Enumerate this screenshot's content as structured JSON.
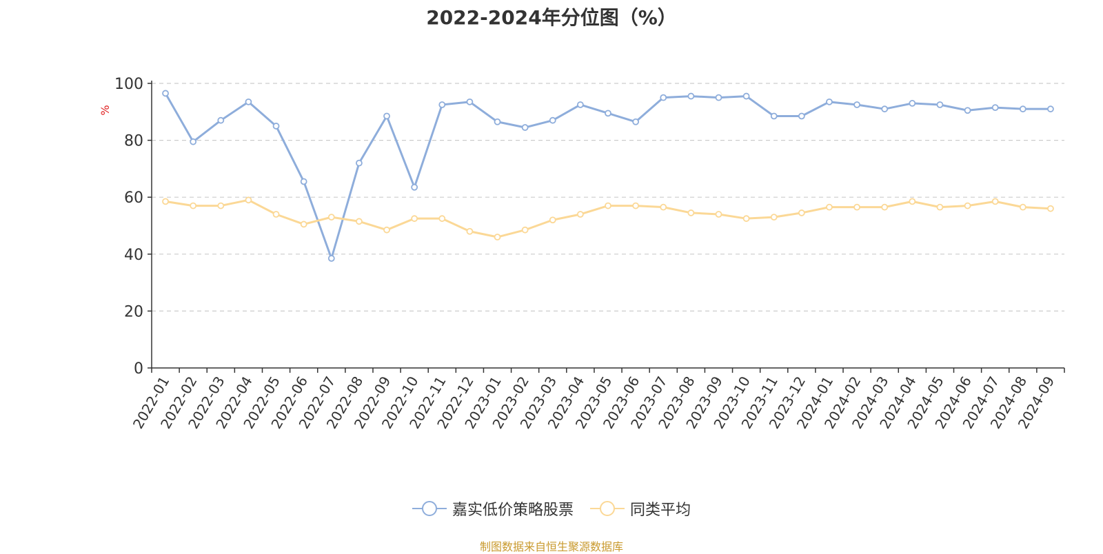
{
  "chart_data": {
    "type": "line",
    "title": "2022-2024年分位图（%）",
    "ylabel": "%",
    "xlabel": "",
    "ylim": [
      0,
      100
    ],
    "yticks": [
      0,
      20,
      40,
      60,
      80,
      100
    ],
    "grid": true,
    "legend_position": "bottom",
    "categories": [
      "2022-01",
      "2022-02",
      "2022-03",
      "2022-04",
      "2022-05",
      "2022-06",
      "2022-07",
      "2022-08",
      "2022-09",
      "2022-10",
      "2022-11",
      "2022-12",
      "2023-01",
      "2023-02",
      "2023-03",
      "2023-04",
      "2023-05",
      "2023-06",
      "2023-07",
      "2023-08",
      "2023-09",
      "2023-10",
      "2023-11",
      "2023-12",
      "2024-01",
      "2024-02",
      "2024-03",
      "2024-04",
      "2024-05",
      "2024-06",
      "2024-07",
      "2024-08",
      "2024-09"
    ],
    "series": [
      {
        "name": "嘉实低价策略股票",
        "color": "#8eaddb",
        "values": [
          96.5,
          79.5,
          87.0,
          93.5,
          85.0,
          65.5,
          38.5,
          72.0,
          88.5,
          63.5,
          92.5,
          93.5,
          86.5,
          84.5,
          87.0,
          92.5,
          89.5,
          86.5,
          95.0,
          95.5,
          95.0,
          95.5,
          88.5,
          88.5,
          93.5,
          92.5,
          91.0,
          93.0,
          92.5,
          90.5,
          91.5,
          91.0,
          91.0
        ]
      },
      {
        "name": "同类平均",
        "color": "#fbd896",
        "values": [
          58.5,
          57.0,
          57.0,
          59.0,
          54.0,
          50.5,
          53.0,
          51.5,
          48.5,
          52.5,
          52.5,
          48.0,
          46.0,
          48.5,
          52.0,
          54.0,
          57.0,
          57.0,
          56.5,
          54.5,
          54.0,
          52.5,
          53.0,
          54.5,
          56.5,
          56.5,
          56.5,
          58.5,
          56.5,
          57.0,
          58.5,
          56.5,
          56.0
        ]
      }
    ]
  },
  "source_note": "制图数据来自恒生聚源数据库",
  "colors": {
    "axis": "#333333",
    "grid": "#cccccc",
    "ylabel": "#e02020",
    "source": "#c99a2e"
  }
}
